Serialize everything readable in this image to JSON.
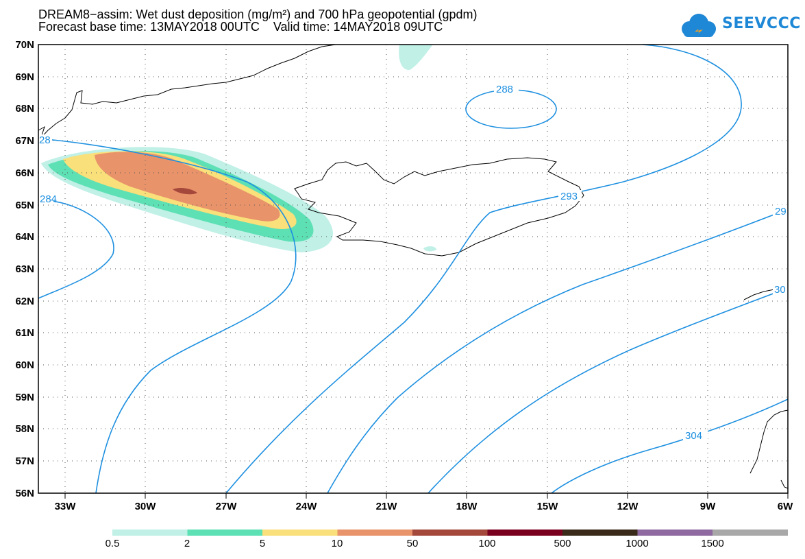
{
  "title_line1": "DREAM8−assim: Wet dust deposition (mg/m²) and 700 hPa geopotential (gpdm)",
  "title_line2": "Forecast base time: 13MAY2018 00UTC    Valid time: 14MAY2018 09UTC",
  "logo": {
    "text": "SEEVCCC",
    "icon": "cloud-icon",
    "color": "#1e88d6"
  },
  "axes": {
    "lat_labels": [
      "70N",
      "69N",
      "68N",
      "67N",
      "66N",
      "65N",
      "64N",
      "63N",
      "62N",
      "61N",
      "60N",
      "59N",
      "58N",
      "57N",
      "56N"
    ],
    "lon_labels": [
      "33W",
      "30W",
      "27W",
      "24W",
      "21W",
      "18W",
      "15W",
      "12W",
      "9W",
      "6W"
    ]
  },
  "contours": {
    "labels": [
      "288",
      "293",
      "29",
      "284",
      "304",
      "30",
      "28"
    ],
    "line_color": "#1e90e0"
  },
  "legend": {
    "labels": [
      "0.5",
      "2",
      "5",
      "10",
      "50",
      "100",
      "500",
      "1000",
      "1500"
    ],
    "colors": [
      "#c0f0e6",
      "#5ee0b5",
      "#f9e07a",
      "#e9936b",
      "#a5483c",
      "#7a0020",
      "#3a2a1a",
      "#8e6aa0",
      "#a8a8a8"
    ]
  }
}
